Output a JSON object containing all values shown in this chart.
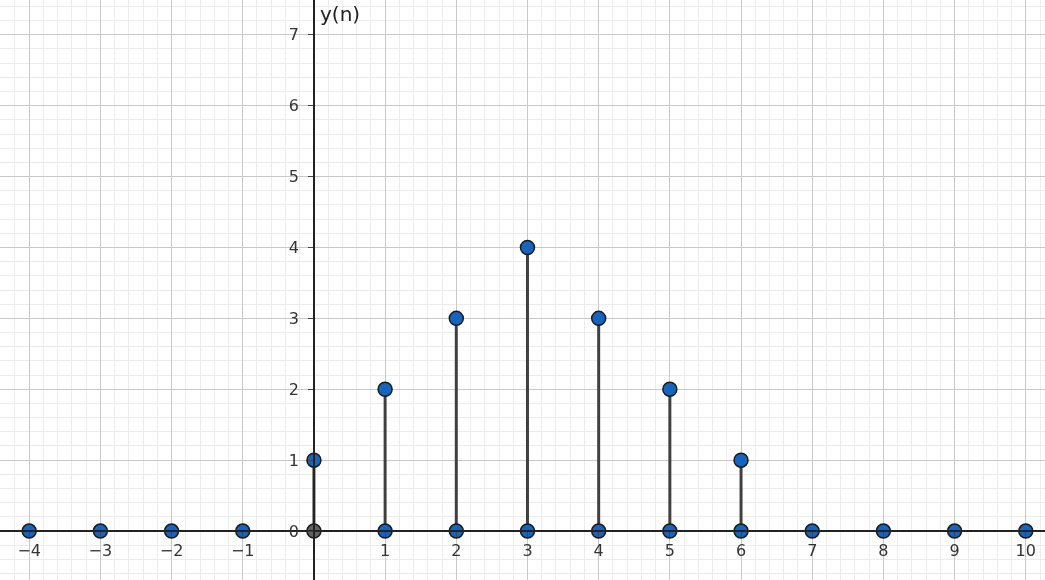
{
  "chart_data": {
    "type": "lollipop",
    "ylabel": "y(n)",
    "x": [
      -4,
      -3,
      -2,
      -1,
      0,
      1,
      2,
      3,
      4,
      5,
      6,
      7,
      8,
      9,
      10
    ],
    "series": [
      {
        "color": "#1565c0",
        "values": [
          0,
          0,
          0,
          0,
          1,
          2,
          3,
          4,
          3,
          2,
          1,
          0,
          0,
          0,
          0
        ]
      },
      {
        "type": "scatter",
        "color": "#1565c0",
        "x": [
          1,
          2,
          3,
          4,
          5,
          6
        ],
        "values": [
          0,
          0,
          0,
          0,
          0,
          0
        ]
      },
      {
        "type": "scatter",
        "color": "#616161",
        "x": [
          0
        ],
        "values": [
          0
        ]
      }
    ],
    "xlim": [
      -4.41,
      10.27
    ],
    "ylim": [
      -0.69,
      7.49
    ],
    "xticks": [
      {
        "value": -4,
        "label": "−4"
      },
      {
        "value": -3,
        "label": "−3"
      },
      {
        "value": -2,
        "label": "−2"
      },
      {
        "value": -1,
        "label": "−1"
      },
      1,
      2,
      3,
      4,
      5,
      6,
      7,
      8,
      9,
      10
    ],
    "yticks": [
      0,
      1,
      2,
      3,
      4,
      5,
      6,
      7
    ],
    "grid": true,
    "marker": "circle"
  }
}
